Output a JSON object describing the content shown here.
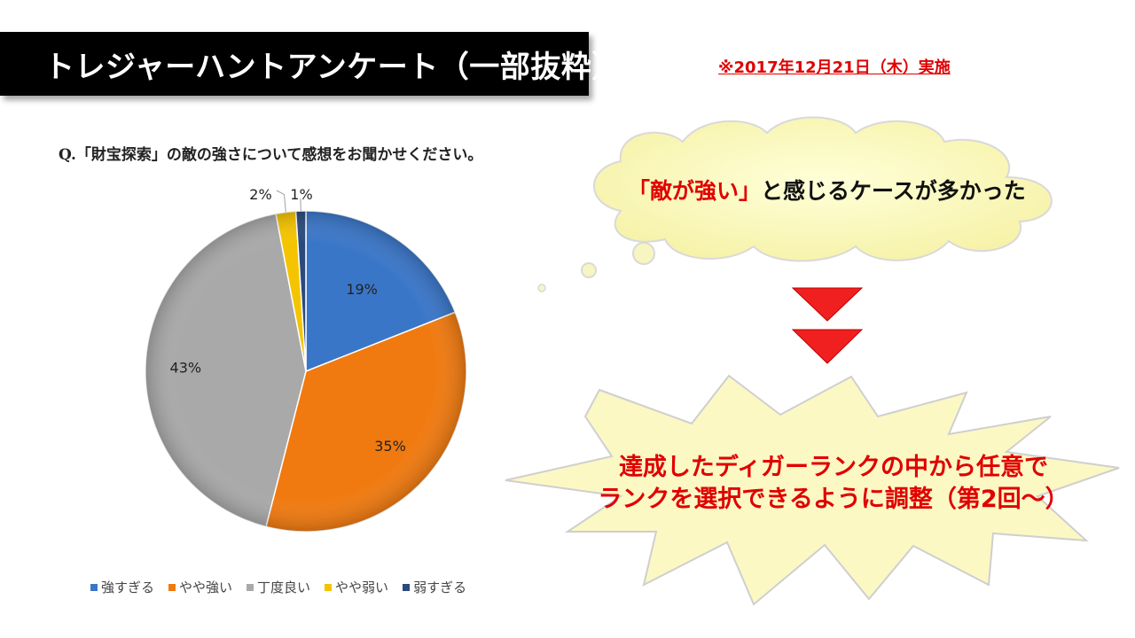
{
  "header": {
    "title": "トレジャーハントアンケート（一部抜粋）",
    "date": "※2017年12月21日（木）実施"
  },
  "question": "Q.「財宝探索」の敵の強さについて感想をお聞かせください。",
  "chart_data": {
    "type": "pie",
    "categories": [
      "強すぎる",
      "やや強い",
      "丁度良い",
      "やや弱い",
      "弱すぎる"
    ],
    "values": [
      19,
      35,
      43,
      2,
      1
    ],
    "labels": [
      "19%",
      "35%",
      "43%",
      "2%",
      "1%"
    ],
    "colors": [
      "#3a76c8",
      "#f07a10",
      "#a9a9a9",
      "#f5c400",
      "#2a4a7c"
    ],
    "legend_position": "bottom"
  },
  "callout": {
    "highlight": "「敵が強い」",
    "text": "と感じるケースが多かった"
  },
  "result": {
    "line1": "達成したディガーランクの中から任意で",
    "line2": "ランクを選択できるように調整（第2回～）"
  }
}
